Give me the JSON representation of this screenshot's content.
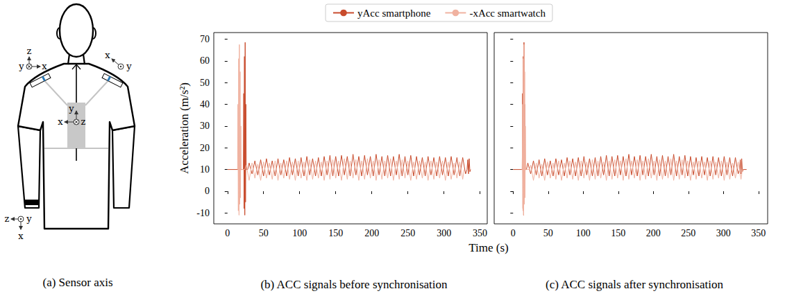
{
  "diagram": {
    "caption": "(a) Sensor axis",
    "triads": [
      [
        "z",
        "y",
        "x"
      ],
      [
        "x",
        "y"
      ],
      [
        "y",
        "x",
        "z"
      ],
      [
        "z",
        "y",
        "x"
      ]
    ]
  },
  "chart_data": [
    {
      "type": "line",
      "title": "(b) ACC signals before synchronisation",
      "xlabel": "Time (s)",
      "ylabel": "Acceleration (m/s²)",
      "xlim": [
        -19,
        360
      ],
      "xticks": [
        0,
        50,
        100,
        150,
        200,
        250,
        300,
        350
      ],
      "ylim": [
        -15,
        73
      ],
      "yticks": [
        -10,
        0,
        10,
        20,
        30,
        40,
        50,
        60,
        70
      ],
      "grid": false,
      "legend": "upper center",
      "series": [
        {
          "name": "yAcc smartphone",
          "color": "#c84b2c",
          "x": [
            0,
            20,
            22,
            22.5,
            23,
            23.5,
            24,
            24.5,
            25,
            25.5,
            26,
            28,
            30,
            34,
            38,
            42,
            46,
            50,
            54,
            58,
            62,
            66,
            70,
            74,
            78,
            82,
            86,
            90,
            94,
            98,
            102,
            106,
            110,
            114,
            118,
            122,
            126,
            130,
            134,
            138,
            142,
            146,
            150,
            154,
            158,
            162,
            166,
            170,
            174,
            178,
            182,
            186,
            190,
            194,
            198,
            202,
            206,
            210,
            214,
            218,
            222,
            226,
            230,
            234,
            238,
            242,
            246,
            250,
            254,
            258,
            262,
            266,
            270,
            274,
            278,
            282,
            286,
            290,
            294,
            298,
            302,
            306,
            310,
            314,
            318,
            322,
            326,
            330,
            332,
            333,
            334,
            335,
            336,
            337
          ],
          "values": [
            10,
            10,
            10,
            45,
            -8,
            62,
            -11,
            68.5,
            -5,
            40,
            10,
            10,
            13,
            8,
            14,
            7.5,
            14.5,
            7,
            15,
            7.5,
            14,
            7,
            15,
            7.5,
            14.5,
            7,
            15.5,
            7.5,
            15,
            7,
            15.5,
            7,
            16,
            7.5,
            15,
            7,
            15.5,
            7,
            16,
            7.5,
            16.5,
            7,
            16,
            7,
            16.5,
            7.5,
            16,
            7,
            17,
            7.5,
            16,
            7,
            16.5,
            7.5,
            16,
            7,
            17,
            7.5,
            16,
            7,
            16.5,
            7,
            16,
            7.5,
            17,
            7,
            16,
            7.5,
            16.5,
            7,
            16,
            7.5,
            15.5,
            7,
            16,
            7.5,
            15.5,
            7,
            16,
            7.5,
            15.5,
            7,
            16,
            7.5,
            15.5,
            7,
            15.5,
            8,
            10,
            14.5,
            8,
            15,
            9,
            10
          ]
        },
        {
          "name": "-xAcc smartwatch",
          "color": "#f0b2a0",
          "x": [
            14,
            14.5,
            15,
            15.5,
            16,
            16.5,
            17,
            17.5,
            18,
            18.5,
            19,
            20,
            22,
            24,
            26,
            30,
            34,
            38,
            42,
            46,
            50,
            54,
            58,
            62,
            66,
            70,
            74,
            78,
            82,
            86,
            90,
            94,
            98,
            102,
            106,
            110,
            114,
            118,
            122,
            126,
            130,
            134,
            138,
            142,
            146,
            150,
            154,
            158,
            162,
            166,
            170,
            174,
            178,
            182,
            186,
            190,
            194,
            198,
            202,
            206,
            210,
            214,
            218,
            222,
            226,
            230,
            234,
            238,
            242,
            246,
            250,
            254,
            258,
            262,
            266,
            270,
            274,
            278,
            282,
            286,
            290,
            294,
            298,
            302,
            306,
            310,
            314,
            318,
            322,
            326,
            328
          ],
          "values": [
            10,
            40,
            -9,
            61,
            -11,
            67.5,
            -6,
            55,
            -3,
            30,
            10,
            10,
            10,
            10,
            12,
            5,
            13,
            6,
            12.5,
            5,
            13.5,
            6,
            13,
            5.5,
            14,
            5,
            13,
            6,
            14,
            5.5,
            13.5,
            5,
            14,
            6,
            13.5,
            5,
            14.5,
            5.5,
            14,
            6,
            13.5,
            5,
            14,
            5.5,
            14.5,
            6,
            14,
            5,
            15,
            5.5,
            14,
            6,
            14.5,
            5,
            14,
            5.5,
            15,
            6,
            14,
            5,
            14.5,
            5.5,
            14,
            6,
            15,
            5,
            14,
            5.5,
            14.5,
            6,
            14,
            5,
            13.5,
            5.5,
            14,
            6,
            13.5,
            5,
            14,
            5.5,
            13.5,
            6,
            14,
            5,
            13.5,
            5.5,
            13,
            6,
            13.5,
            5.5,
            10
          ]
        }
      ]
    },
    {
      "type": "line",
      "title": "(c) ACC signals after synchronisation",
      "xlim": [
        -27,
        363
      ],
      "xticks": [
        0,
        50,
        100,
        150,
        200,
        250,
        300,
        350
      ],
      "ylim": [
        -15,
        73
      ],
      "yticks": [
        -10,
        0,
        10,
        20,
        30,
        40,
        50,
        60,
        70
      ],
      "grid": false,
      "tick_labels": "x",
      "series": [
        {
          "name": "yAcc smartphone",
          "color": "#c84b2c",
          "x": [
            0,
            12,
            13,
            13.5,
            14,
            14.5,
            15,
            15.5,
            16,
            16.5,
            17,
            19,
            21,
            25,
            29,
            33,
            37,
            41,
            45,
            49,
            53,
            57,
            61,
            65,
            69,
            73,
            77,
            81,
            85,
            89,
            93,
            97,
            101,
            105,
            109,
            113,
            117,
            121,
            125,
            129,
            133,
            137,
            141,
            145,
            149,
            153,
            157,
            161,
            165,
            169,
            173,
            177,
            181,
            185,
            189,
            193,
            197,
            201,
            205,
            209,
            213,
            217,
            221,
            225,
            229,
            233,
            237,
            241,
            245,
            249,
            253,
            257,
            261,
            265,
            269,
            273,
            277,
            281,
            285,
            289,
            293,
            297,
            301,
            305,
            309,
            313,
            317,
            321,
            323,
            324,
            325,
            326,
            327,
            328,
            333
          ],
          "values": [
            10,
            10,
            10,
            45,
            -8,
            62,
            -11,
            68.5,
            -5,
            40,
            10,
            10,
            13,
            8,
            14,
            7.5,
            14.5,
            7,
            15,
            7.5,
            14,
            7,
            15,
            7.5,
            14.5,
            7,
            15.5,
            7.5,
            15,
            7,
            15.5,
            7,
            16,
            7.5,
            15,
            7,
            15.5,
            7,
            16,
            7.5,
            16.5,
            7,
            16,
            7,
            16.5,
            7.5,
            16,
            7,
            17,
            7.5,
            16,
            7,
            16.5,
            7.5,
            16,
            7,
            17,
            7.5,
            16,
            7,
            16.5,
            7,
            16,
            7.5,
            17,
            7,
            16,
            7.5,
            16.5,
            7,
            16,
            7.5,
            15.5,
            7,
            16,
            7.5,
            15.5,
            7,
            16,
            7.5,
            15.5,
            7,
            16,
            7.5,
            15.5,
            7,
            15.5,
            8,
            10,
            14.5,
            8,
            15,
            9,
            10,
            10
          ]
        },
        {
          "name": "-xAcc smartwatch",
          "color": "#f0b2a0",
          "x": [
            13,
            13.5,
            14,
            14.5,
            15,
            15.5,
            16,
            16.5,
            17,
            17.5,
            18,
            19,
            21,
            23,
            25,
            29,
            33,
            37,
            41,
            45,
            49,
            53,
            57,
            61,
            65,
            69,
            73,
            77,
            81,
            85,
            89,
            93,
            97,
            101,
            105,
            109,
            113,
            117,
            121,
            125,
            129,
            133,
            137,
            141,
            145,
            149,
            153,
            157,
            161,
            165,
            169,
            173,
            177,
            181,
            185,
            189,
            193,
            197,
            201,
            205,
            209,
            213,
            217,
            221,
            225,
            229,
            233,
            237,
            241,
            245,
            249,
            253,
            257,
            261,
            265,
            269,
            273,
            277,
            281,
            285,
            289,
            293,
            297,
            301,
            305,
            309,
            313,
            317,
            321,
            325,
            327
          ],
          "values": [
            10,
            40,
            -9,
            61,
            -11,
            67.5,
            -6,
            55,
            -3,
            30,
            10,
            10,
            10,
            10,
            12,
            5,
            13,
            6,
            12.5,
            5,
            13.5,
            6,
            13,
            5.5,
            14,
            5,
            13,
            6,
            14,
            5.5,
            13.5,
            5,
            14,
            6,
            13.5,
            5,
            14.5,
            5.5,
            14,
            6,
            13.5,
            5,
            14,
            5.5,
            14.5,
            6,
            14,
            5,
            15,
            5.5,
            14,
            6,
            14.5,
            5,
            14,
            5.5,
            15,
            6,
            14,
            5,
            14.5,
            5.5,
            14,
            6,
            15,
            5,
            14,
            5.5,
            14.5,
            6,
            14,
            5,
            13.5,
            5.5,
            14,
            6,
            13.5,
            5,
            14,
            5.5,
            13.5,
            6,
            14,
            5,
            13.5,
            5.5,
            13,
            6,
            13.5,
            5.5,
            10
          ]
        }
      ]
    }
  ]
}
